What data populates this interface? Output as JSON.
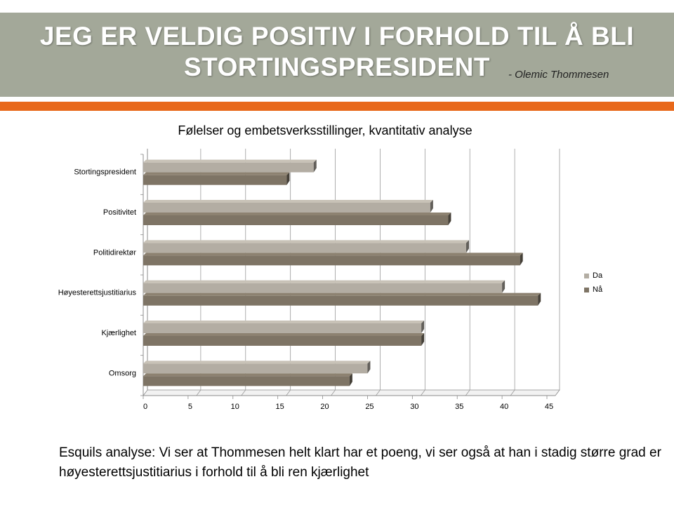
{
  "slide": {
    "title": "JEG ER VELDIG POSITIV I FORHOLD TIL Å BLI STORTINGSPRESIDENT",
    "author": "- Olemic Thommesen",
    "caption": "Esquils analyse: Vi ser at Thommesen helt klart har et poeng, vi ser også at han i stadig større grad  er høyesterettsjustitiarius i forhold til å bli ren kjærlighet"
  },
  "colors": {
    "title_band": "#a3a899",
    "accent": "#e8681a",
    "series_da": "#b3ada3",
    "series_na": "#7e7465"
  },
  "chart_data": {
    "type": "bar",
    "orientation": "horizontal",
    "style": "3d",
    "title": "Følelser og  embetsverksstillinger, kvantitativ analyse",
    "categories": [
      "Stortingspresident",
      "Positivitet",
      "Politidirektør",
      "Høyesterettsjustitiarius",
      "Kjærlighet",
      "Omsorg"
    ],
    "series": [
      {
        "name": "Da",
        "values": [
          19,
          32,
          36,
          40,
          31,
          25
        ]
      },
      {
        "name": "Nå",
        "values": [
          16,
          34,
          42,
          44,
          31,
          23
        ]
      }
    ],
    "xlim": [
      0,
      45
    ],
    "xticks": [
      0,
      5,
      10,
      15,
      20,
      25,
      30,
      35,
      40,
      45
    ],
    "grid": true,
    "legend": "right"
  }
}
